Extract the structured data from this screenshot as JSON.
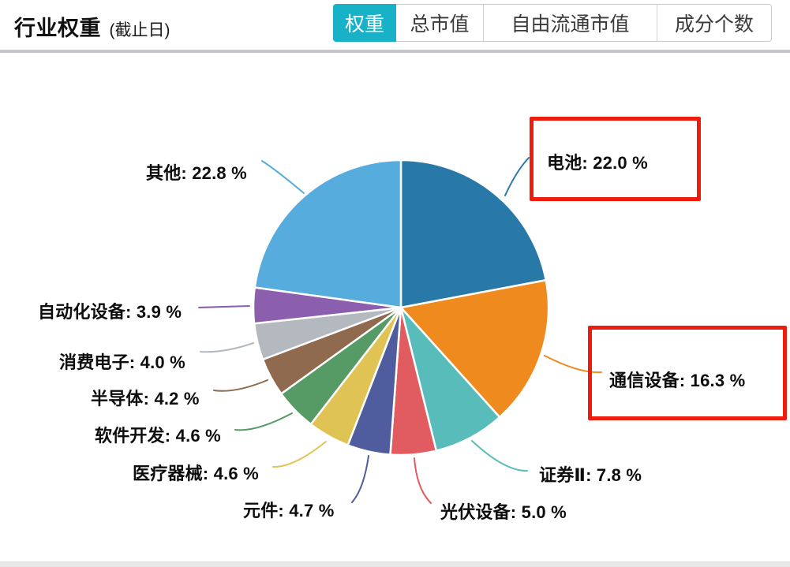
{
  "header": {
    "title": "行业权重",
    "subtitle": "(截止日)"
  },
  "tabs": [
    {
      "label": "权重",
      "active": true
    },
    {
      "label": "总市值",
      "active": false
    },
    {
      "label": "自由流通市值",
      "active": false
    },
    {
      "label": "成分个数",
      "active": false
    }
  ],
  "colors": {
    "active_tab_bg": "#17b2c7",
    "active_tab_text": "#ffffff",
    "highlight_box_border": "#ee1c0c",
    "divider": "#c5c5cc"
  },
  "chart_data": {
    "type": "pie",
    "title": "行业权重 (截止日)",
    "legend_position": "none",
    "start_angle": "12-o-clock, clockwise",
    "slices": [
      {
        "label": "电池",
        "value": 22.0,
        "display": "电池: 22.0 %",
        "color": "#2878a8",
        "highlighted": true
      },
      {
        "label": "通信设备",
        "value": 16.3,
        "display": "通信设备: 16.3 %",
        "color": "#ef8a1f",
        "highlighted": true
      },
      {
        "label": "证券Ⅱ",
        "value": 7.8,
        "display": "证券Ⅱ: 7.8 %",
        "color": "#58bcba",
        "highlighted": false
      },
      {
        "label": "光伏设备",
        "value": 5.0,
        "display": "光伏设备: 5.0 %",
        "color": "#e05c60",
        "highlighted": false
      },
      {
        "label": "元件",
        "value": 4.7,
        "display": "元件: 4.7 %",
        "color": "#4f5c9e",
        "highlighted": false
      },
      {
        "label": "医疗器械",
        "value": 4.6,
        "display": "医疗器械: 4.6 %",
        "color": "#e0c355",
        "highlighted": false
      },
      {
        "label": "软件开发",
        "value": 4.6,
        "display": "软件开发: 4.6 %",
        "color": "#569a66",
        "highlighted": false
      },
      {
        "label": "半导体",
        "value": 4.2,
        "display": "半导体: 4.2 %",
        "color": "#8f6a4f",
        "highlighted": false
      },
      {
        "label": "消费电子",
        "value": 4.0,
        "display": "消费电子: 4.0 %",
        "color": "#b3b9bf",
        "highlighted": false
      },
      {
        "label": "自动化设备",
        "value": 3.9,
        "display": "自动化设备: 3.9 %",
        "color": "#8b5fae",
        "highlighted": false
      },
      {
        "label": "其他",
        "value": 22.8,
        "display": "其他: 22.8 %",
        "color": "#56acdc",
        "highlighted": false
      }
    ]
  }
}
